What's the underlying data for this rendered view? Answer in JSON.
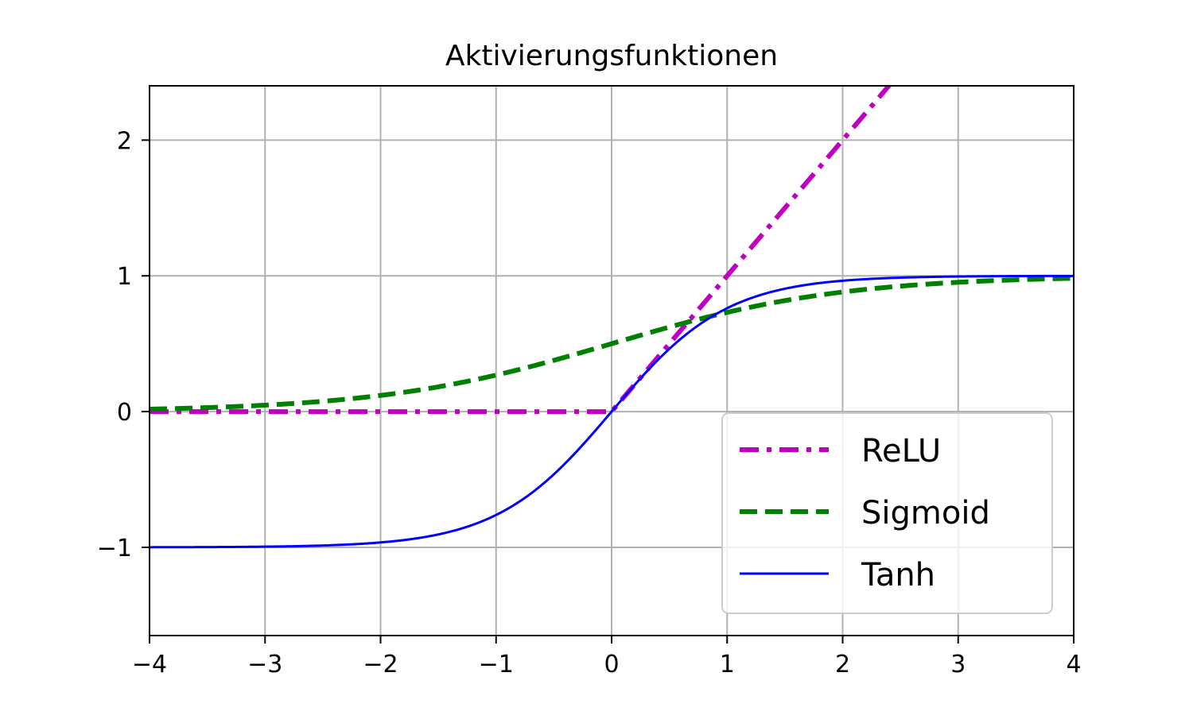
{
  "chart_data": {
    "type": "line",
    "title": "Aktivierungsfunktionen",
    "xlabel": "",
    "ylabel": "",
    "xlim": [
      -4,
      4
    ],
    "ylim": [
      -1.65,
      2.4
    ],
    "xticks": [
      -4,
      -3,
      -2,
      -1,
      0,
      1,
      2,
      3,
      4
    ],
    "xtick_labels": [
      "−4",
      "−3",
      "−2",
      "−1",
      "0",
      "1",
      "2",
      "3",
      "4"
    ],
    "yticks": [
      -1,
      0,
      1,
      2
    ],
    "ytick_labels": [
      "−1",
      "0",
      "1",
      "2"
    ],
    "grid": true,
    "legend_position": "lower right",
    "series": [
      {
        "name": "ReLU",
        "function": "relu",
        "color": "#bf00bf",
        "linestyle": "dashdot",
        "x": [
          -4,
          -3,
          -2,
          -1,
          0,
          1,
          2,
          2.4
        ],
        "y": [
          0,
          0,
          0,
          0,
          0,
          1,
          2,
          2.4
        ]
      },
      {
        "name": "Sigmoid",
        "function": "sigmoid",
        "color": "#008000",
        "linestyle": "dashed",
        "x": [
          -4,
          -3,
          -2,
          -1,
          0,
          1,
          2,
          3,
          4
        ],
        "y": [
          0.018,
          0.047,
          0.119,
          0.269,
          0.5,
          0.731,
          0.881,
          0.953,
          0.982
        ]
      },
      {
        "name": "Tanh",
        "function": "tanh",
        "color": "#0000ff",
        "linestyle": "solid",
        "x": [
          -4,
          -3,
          -2,
          -1,
          0,
          1,
          2,
          3,
          4
        ],
        "y": [
          -0.999,
          -0.995,
          -0.964,
          -0.762,
          0,
          0.762,
          0.964,
          0.995,
          0.999
        ]
      }
    ]
  }
}
